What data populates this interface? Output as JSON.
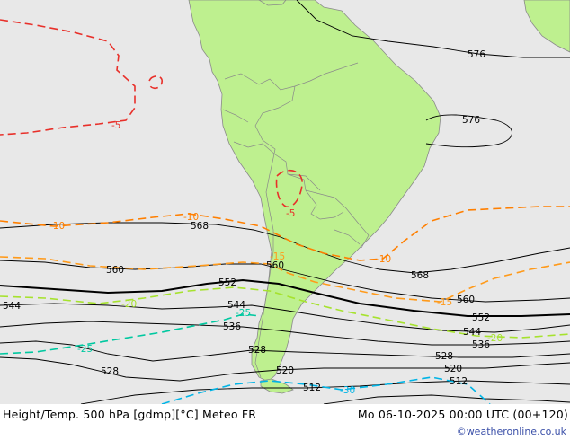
{
  "map": {
    "colors": {
      "ocean": "#e8e8e8",
      "land": "#bef08f",
      "height_contour": "#000000",
      "temp_warm": "#ff7f00",
      "temp_cold": "#a6e22e",
      "temp_colder": "#00c8a0",
      "temp_coldest": "#00b4e6",
      "temp_minus5": "#e8302a"
    },
    "height_labels": {
      "h576a": "576",
      "h576b": "576",
      "h568a": "568",
      "h568b": "568",
      "h560a": "560",
      "h560b": "560",
      "h560c": "560",
      "h552a": "552",
      "h552b": "552",
      "h544a": "544",
      "h544b": "544",
      "h544c": "544",
      "h536a": "536",
      "h536b": "536",
      "h528a": "528",
      "h528b": "528",
      "h528c": "528",
      "h520a": "520",
      "h520b": "520",
      "h512a": "512",
      "h512b": "512"
    },
    "temp_labels": {
      "t_m5a": "-5",
      "t_m5b": "-5",
      "t_m10a": "-10",
      "t_m10b": "-10",
      "t_m10c": "-10",
      "t_m15a": "-15",
      "t_m15b": "-15",
      "t_m20a": "-20",
      "t_m20b": "-20",
      "t_m25a": "-25",
      "t_m25b": "-25",
      "t_m30": "-30"
    }
  },
  "footer": {
    "title": "Height/Temp. 500 hPa [gdmp][°C] Meteo FR",
    "datetime": "Mo 06-10-2025 00:00 UTC (00+120)",
    "copyright": "©weatheronline.co.uk"
  }
}
